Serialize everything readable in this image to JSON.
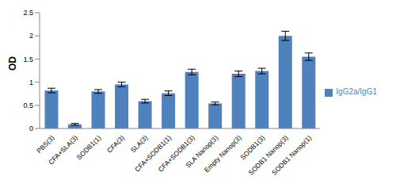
{
  "chart_data": {
    "type": "bar",
    "y_label": "OD",
    "categories": [
      "PBS(3)",
      "CFA+SLA(3)",
      "SODB1(1)",
      "CFA(3)",
      "SLA(3)",
      "CFA+SODB1(1)",
      "CFA+SODB1(3)",
      "SLA Nanop(3)",
      "Empty Nanop(3)",
      "SODB1(3)",
      "SODB1 Nanop(3)",
      "SODB1 Nanop(1)"
    ],
    "series": [
      {
        "name": "IgG2a/IgG1",
        "color": "#4f81bd",
        "values": [
          0.82,
          0.09,
          0.8,
          0.95,
          0.59,
          0.76,
          1.22,
          0.54,
          1.18,
          1.24,
          2.0,
          1.55
        ],
        "errors": [
          0.05,
          0.02,
          0.04,
          0.05,
          0.04,
          0.05,
          0.06,
          0.03,
          0.06,
          0.06,
          0.1,
          0.08
        ]
      }
    ],
    "ylim": [
      0,
      2.5
    ],
    "yticks": [
      0,
      0.5,
      1,
      1.5,
      2,
      2.5
    ],
    "grid": false,
    "legend": "right"
  }
}
